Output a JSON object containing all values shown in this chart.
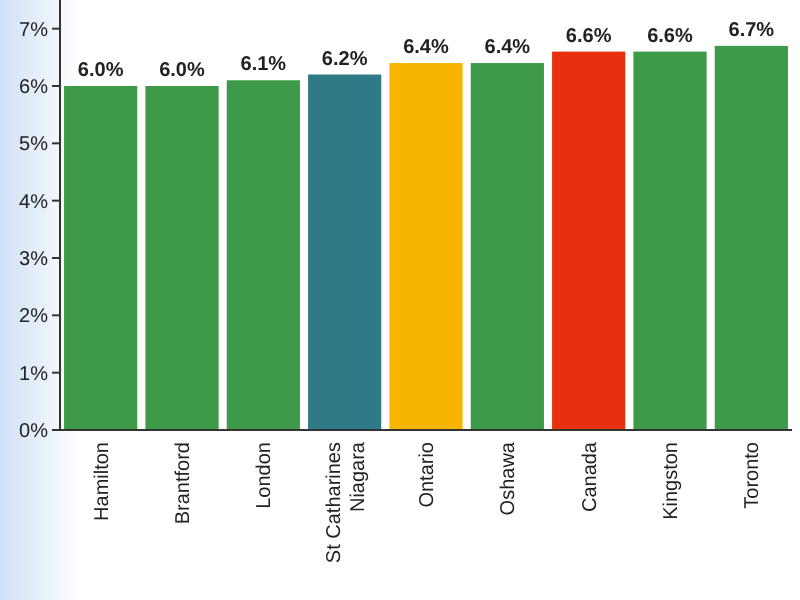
{
  "chart_data": {
    "type": "bar",
    "categories": [
      "Hamilton",
      "Brantford",
      "London",
      "St Catharines Niagara",
      "Ontario",
      "Oshawa",
      "Canada",
      "Kingston",
      "Toronto"
    ],
    "values": [
      6.0,
      6.0,
      6.1,
      6.2,
      6.4,
      6.4,
      6.6,
      6.6,
      6.7
    ],
    "colors": [
      "#3d9a48",
      "#3d9a48",
      "#3d9a48",
      "#2f7a86",
      "#f7b500",
      "#3d9a48",
      "#e8300e",
      "#3d9a48",
      "#3d9a48"
    ],
    "value_labels": [
      "6.0%",
      "6.0%",
      "6.1%",
      "6.2%",
      "6.4%",
      "6.4%",
      "6.6%",
      "6.6%",
      "6.7%"
    ],
    "ylim": [
      0,
      7.5
    ],
    "yticks": [
      {
        "value": 0,
        "label": "0%"
      },
      {
        "value": 1,
        "label": "1%"
      },
      {
        "value": 2,
        "label": "2%"
      },
      {
        "value": 3,
        "label": "3%"
      },
      {
        "value": 4,
        "label": "4%"
      },
      {
        "value": 5,
        "label": "5%"
      },
      {
        "value": 6,
        "label": "6%"
      },
      {
        "value": 7,
        "label": "7%"
      }
    ],
    "grid": false
  }
}
